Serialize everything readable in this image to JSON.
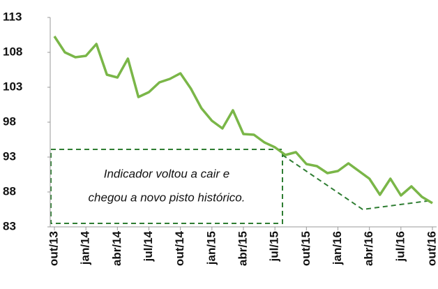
{
  "chart_data": {
    "type": "line",
    "categories": [
      "out/13",
      null,
      null,
      "jan/14",
      null,
      null,
      "abr/14",
      null,
      null,
      "jul/14",
      null,
      null,
      "out/14",
      null,
      null,
      "jan/15",
      null,
      null,
      "abr/15",
      null,
      null,
      "jul/15",
      null,
      null,
      "out/15",
      null,
      null,
      "jan/16",
      null,
      null,
      "abr/16",
      null,
      null,
      "jul/16",
      null,
      null,
      "out/16"
    ],
    "series": [
      {
        "color": "#7ab648",
        "values": [
          110.3,
          108,
          107.3,
          107.5,
          109.2,
          104.8,
          104.4,
          107.1,
          101.6,
          102.3,
          103.7,
          104.2,
          105,
          102.8,
          100,
          98.2,
          97.1,
          99.7,
          96.3,
          96.2,
          95.1,
          94.4,
          93.3,
          93.7,
          92,
          91.7,
          90.7,
          91,
          92.1,
          91,
          89.9,
          87.6,
          89.9,
          87.5,
          88.8,
          87.3,
          86.4
        ]
      }
    ],
    "ylim": [
      83,
      113
    ],
    "yticks": [
      83,
      88,
      93,
      98,
      103,
      108,
      113
    ],
    "annotation": [
      "Indicador voltou a cair  e",
      "chegou a novo pisto histórico."
    ]
  }
}
